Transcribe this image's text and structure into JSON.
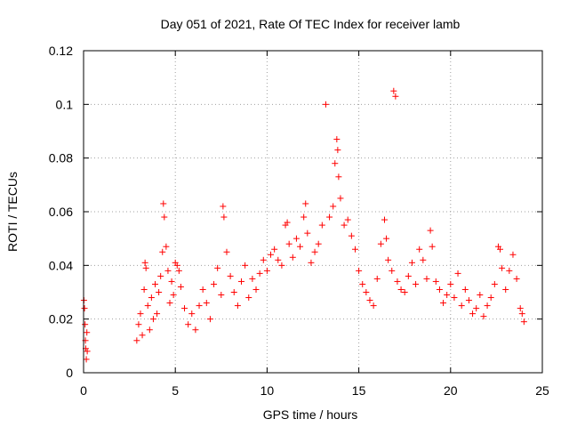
{
  "chart_data": {
    "type": "scatter",
    "title": "Day 051 of 2021, Rate Of TEC Index for receiver lamb",
    "xlabel": "GPS time / hours",
    "ylabel": "ROTI / TECUs",
    "xlim": [
      0,
      25
    ],
    "ylim": [
      0,
      0.12
    ],
    "xticks": [
      "0",
      "5",
      "10",
      "15",
      "20",
      "25"
    ],
    "yticks": [
      "0",
      "0.02",
      "0.04",
      "0.06",
      "0.08",
      "0.1",
      "0.12"
    ],
    "grid": true,
    "marker": "plus",
    "color": "#ff0000",
    "series": [
      {
        "points": [
          [
            0.02,
            0.027
          ],
          [
            0.05,
            0.024
          ],
          [
            0.08,
            0.018
          ],
          [
            0.1,
            0.012
          ],
          [
            0.12,
            0.009
          ],
          [
            0.15,
            0.005
          ],
          [
            0.18,
            0.015
          ],
          [
            0.2,
            0.008
          ],
          [
            2.9,
            0.012
          ],
          [
            3.0,
            0.018
          ],
          [
            3.1,
            0.022
          ],
          [
            3.2,
            0.014
          ],
          [
            3.3,
            0.031
          ],
          [
            3.35,
            0.041
          ],
          [
            3.4,
            0.039
          ],
          [
            3.5,
            0.025
          ],
          [
            3.6,
            0.016
          ],
          [
            3.7,
            0.028
          ],
          [
            3.8,
            0.02
          ],
          [
            3.9,
            0.033
          ],
          [
            4.0,
            0.022
          ],
          [
            4.1,
            0.03
          ],
          [
            4.2,
            0.036
          ],
          [
            4.3,
            0.045
          ],
          [
            4.35,
            0.063
          ],
          [
            4.4,
            0.058
          ],
          [
            4.5,
            0.047
          ],
          [
            4.6,
            0.038
          ],
          [
            4.7,
            0.026
          ],
          [
            4.8,
            0.034
          ],
          [
            4.9,
            0.029
          ],
          [
            5.0,
            0.041
          ],
          [
            5.1,
            0.04
          ],
          [
            5.2,
            0.038
          ],
          [
            5.3,
            0.032
          ],
          [
            5.5,
            0.024
          ],
          [
            5.7,
            0.018
          ],
          [
            5.9,
            0.022
          ],
          [
            6.1,
            0.016
          ],
          [
            6.3,
            0.025
          ],
          [
            6.5,
            0.031
          ],
          [
            6.7,
            0.026
          ],
          [
            6.9,
            0.02
          ],
          [
            7.1,
            0.033
          ],
          [
            7.3,
            0.039
          ],
          [
            7.5,
            0.029
          ],
          [
            7.6,
            0.062
          ],
          [
            7.65,
            0.058
          ],
          [
            7.8,
            0.045
          ],
          [
            8.0,
            0.036
          ],
          [
            8.2,
            0.03
          ],
          [
            8.4,
            0.025
          ],
          [
            8.6,
            0.034
          ],
          [
            8.8,
            0.04
          ],
          [
            9.0,
            0.028
          ],
          [
            9.2,
            0.035
          ],
          [
            9.4,
            0.031
          ],
          [
            9.6,
            0.037
          ],
          [
            9.8,
            0.042
          ],
          [
            10.0,
            0.038
          ],
          [
            10.2,
            0.044
          ],
          [
            10.4,
            0.046
          ],
          [
            10.6,
            0.042
          ],
          [
            10.8,
            0.04
          ],
          [
            11.0,
            0.055
          ],
          [
            11.1,
            0.056
          ],
          [
            11.2,
            0.048
          ],
          [
            11.4,
            0.043
          ],
          [
            11.6,
            0.05
          ],
          [
            11.8,
            0.047
          ],
          [
            12.0,
            0.058
          ],
          [
            12.1,
            0.063
          ],
          [
            12.2,
            0.052
          ],
          [
            12.4,
            0.041
          ],
          [
            12.6,
            0.045
          ],
          [
            12.8,
            0.048
          ],
          [
            13.0,
            0.055
          ],
          [
            13.2,
            0.1
          ],
          [
            13.4,
            0.058
          ],
          [
            13.6,
            0.062
          ],
          [
            13.7,
            0.078
          ],
          [
            13.8,
            0.087
          ],
          [
            13.85,
            0.083
          ],
          [
            13.9,
            0.073
          ],
          [
            14.0,
            0.065
          ],
          [
            14.2,
            0.055
          ],
          [
            14.4,
            0.057
          ],
          [
            14.6,
            0.051
          ],
          [
            14.8,
            0.046
          ],
          [
            15.0,
            0.038
          ],
          [
            15.2,
            0.033
          ],
          [
            15.4,
            0.03
          ],
          [
            15.6,
            0.027
          ],
          [
            15.8,
            0.025
          ],
          [
            16.0,
            0.035
          ],
          [
            16.2,
            0.048
          ],
          [
            16.4,
            0.057
          ],
          [
            16.5,
            0.05
          ],
          [
            16.6,
            0.042
          ],
          [
            16.8,
            0.038
          ],
          [
            16.9,
            0.105
          ],
          [
            17.0,
            0.103
          ],
          [
            17.1,
            0.034
          ],
          [
            17.3,
            0.031
          ],
          [
            17.5,
            0.03
          ],
          [
            17.7,
            0.036
          ],
          [
            17.9,
            0.041
          ],
          [
            18.1,
            0.033
          ],
          [
            18.3,
            0.046
          ],
          [
            18.5,
            0.042
          ],
          [
            18.7,
            0.035
          ],
          [
            18.9,
            0.053
          ],
          [
            19.0,
            0.047
          ],
          [
            19.2,
            0.034
          ],
          [
            19.4,
            0.031
          ],
          [
            19.6,
            0.026
          ],
          [
            19.8,
            0.029
          ],
          [
            20.0,
            0.033
          ],
          [
            20.2,
            0.028
          ],
          [
            20.4,
            0.037
          ],
          [
            20.6,
            0.025
          ],
          [
            20.8,
            0.031
          ],
          [
            21.0,
            0.027
          ],
          [
            21.2,
            0.022
          ],
          [
            21.4,
            0.024
          ],
          [
            21.6,
            0.029
          ],
          [
            21.8,
            0.021
          ],
          [
            22.0,
            0.025
          ],
          [
            22.2,
            0.028
          ],
          [
            22.4,
            0.033
          ],
          [
            22.6,
            0.047
          ],
          [
            22.7,
            0.046
          ],
          [
            22.8,
            0.039
          ],
          [
            23.0,
            0.031
          ],
          [
            23.2,
            0.038
          ],
          [
            23.4,
            0.044
          ],
          [
            23.6,
            0.035
          ],
          [
            23.8,
            0.024
          ],
          [
            23.9,
            0.022
          ],
          [
            24.0,
            0.019
          ]
        ]
      }
    ]
  }
}
